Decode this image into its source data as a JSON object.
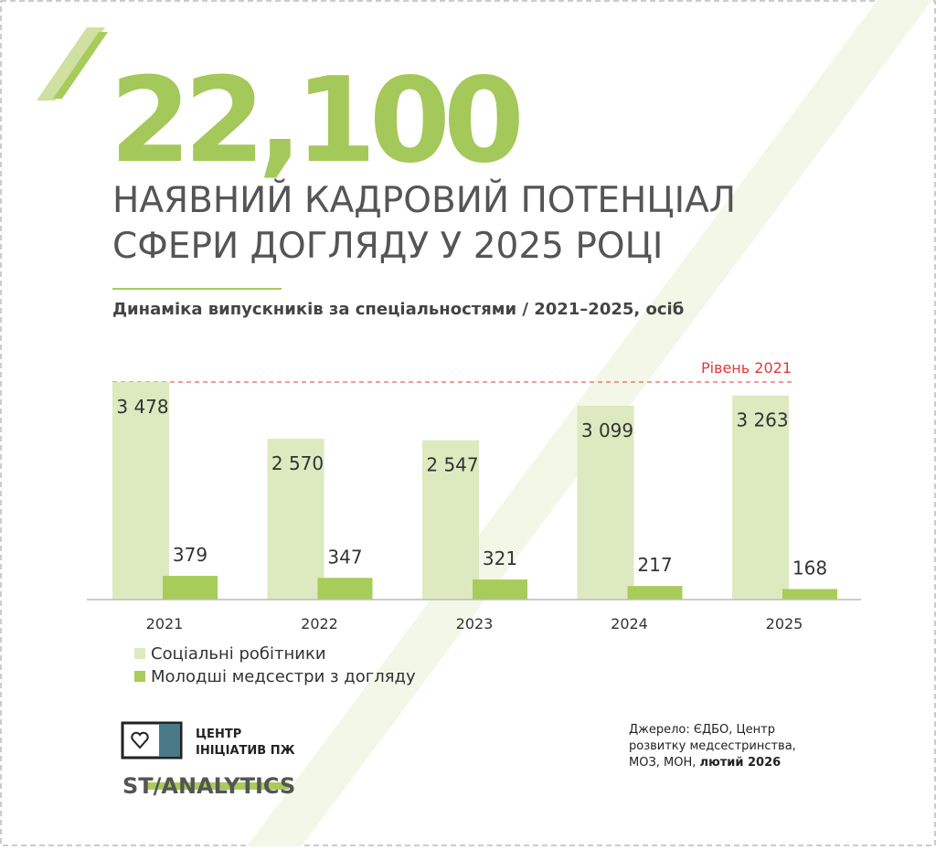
{
  "headline": "22,100",
  "heading": [
    "НАЯВНИЙ КАДРОВИЙ ПОТЕНЦІАЛ",
    "СФЕРИ ДОГЛЯДУ У 2025 РОЦІ"
  ],
  "chart_data": {
    "type": "bar",
    "title": "Динаміка випускників за спеціальностями / 2021–2025, осіб",
    "categories": [
      "2021",
      "2022",
      "2023",
      "2024",
      "2025"
    ],
    "series": [
      {
        "name": "Соціальні робітники",
        "color": "#dde9bf",
        "values": [
          3478,
          2570,
          2547,
          3099,
          3263
        ],
        "value_labels": [
          "3 478",
          "2 570",
          "2 547",
          "3 099",
          "3 263"
        ]
      },
      {
        "name": "Молодші медсестри з догляду",
        "color": "#a7cc5a",
        "values": [
          379,
          347,
          321,
          217,
          168
        ]
      }
    ],
    "ylim": [
      0,
      3500
    ],
    "reference_label": "Рівень 2021",
    "reference_color": "#e03a3a"
  },
  "logo": {
    "line1": "ЦЕНТР",
    "line2": "ІНІЦІАТИВ ПЖ",
    "brand": "ST/ANALYTICS"
  },
  "source": {
    "text": [
      "Джерело: ЄДБО, Центр",
      "розвитку медсестринства,",
      "МОЗ, МОН,"
    ],
    "date": "лютий 2026"
  }
}
